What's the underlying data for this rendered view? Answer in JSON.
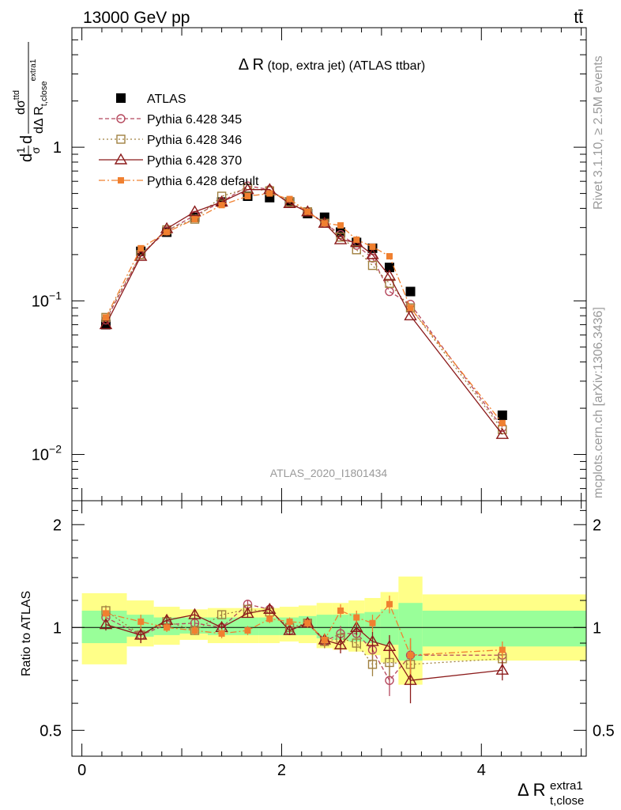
{
  "header": {
    "energy_label": "13000 GeV pp",
    "process_label": "tt̄",
    "side_label_top": "Rivet 3.1.10, ≥ 2.5M events",
    "side_label_bottom": "mcplots.cern.ch [arXiv:1306.3436]",
    "analysis_id": "ATLAS_2020_I1801434"
  },
  "chart_data": [
    {
      "type": "line",
      "panel": "main",
      "title": "Δ R (top, extra jet) (ATLAS ttbar)",
      "title_main": "Δ R",
      "title_rest": " (top, extra jet) (ATLAS ttbar)",
      "ylabel": "dσ^ttd / σ d dΔ R_t,close^extra1",
      "ylabel_parts": {
        "prefix": "d",
        "frac_num": "1",
        "frac_den": "σ",
        "d": "d",
        "num": "dσ",
        "num_sup": "ttd",
        "den": "dΔ R",
        "den_sub": "t,close",
        "den_sup": "extra1"
      },
      "xlabel": "Δ R_t,close^extra1",
      "xlabel_parts": {
        "main": "Δ R",
        "sup": "extra1",
        "sub": "t,close"
      },
      "yscale": "log",
      "ylim": [
        0.005,
        6
      ],
      "xlim": [
        -0.1,
        5.05
      ],
      "yticks": [
        {
          "v": 0.01,
          "base": "10",
          "exp": "−2"
        },
        {
          "v": 0.1,
          "base": "10",
          "exp": "−1"
        },
        {
          "v": 1,
          "base": "1",
          "exp": ""
        }
      ],
      "legend_position": "top-left",
      "series": [
        {
          "name": "ATLAS",
          "role": "data",
          "marker": "square-filled",
          "color": "#000000",
          "x": [
            0.24,
            0.59,
            0.85,
            1.13,
            1.4,
            1.66,
            1.88,
            2.08,
            2.26,
            2.43,
            2.59,
            2.75,
            2.91,
            3.08,
            3.29,
            4.21
          ],
          "y": [
            0.07,
            0.21,
            0.28,
            0.35,
            0.44,
            0.48,
            0.47,
            0.44,
            0.37,
            0.35,
            0.28,
            0.24,
            0.22,
            0.165,
            0.115,
            0.018
          ]
        },
        {
          "name": "Pythia 6.428 345",
          "marker": "circle-open",
          "color": "#b5485d",
          "dash": "5,3",
          "x": [
            0.24,
            0.59,
            0.85,
            1.13,
            1.4,
            1.66,
            1.88,
            2.08,
            2.26,
            2.43,
            2.59,
            2.75,
            2.91,
            3.08,
            3.29,
            4.21
          ],
          "y": [
            0.075,
            0.2,
            0.285,
            0.36,
            0.44,
            0.56,
            0.53,
            0.43,
            0.38,
            0.32,
            0.27,
            0.23,
            0.19,
            0.115,
            0.095,
            0.015
          ]
        },
        {
          "name": "Pythia 6.428 346",
          "marker": "square-open",
          "color": "#a08040",
          "dash": "2,3",
          "x": [
            0.24,
            0.59,
            0.85,
            1.13,
            1.4,
            1.66,
            1.88,
            2.08,
            2.26,
            2.43,
            2.59,
            2.75,
            2.91,
            3.08,
            3.29,
            4.21
          ],
          "y": [
            0.078,
            0.2,
            0.29,
            0.34,
            0.48,
            0.54,
            0.52,
            0.44,
            0.38,
            0.32,
            0.26,
            0.215,
            0.17,
            0.13,
            0.09,
            0.0145
          ]
        },
        {
          "name": "Pythia 6.428 370",
          "marker": "triangle-open",
          "color": "#8b1a1a",
          "dash": "",
          "x": [
            0.24,
            0.59,
            0.85,
            1.13,
            1.4,
            1.66,
            1.88,
            2.08,
            2.26,
            2.43,
            2.59,
            2.75,
            2.91,
            3.08,
            3.29,
            4.21
          ],
          "y": [
            0.07,
            0.195,
            0.295,
            0.38,
            0.44,
            0.53,
            0.53,
            0.43,
            0.38,
            0.32,
            0.25,
            0.24,
            0.2,
            0.145,
            0.08,
            0.0135
          ]
        },
        {
          "name": "Pythia 6.428 default",
          "marker": "square-filled-small",
          "color": "#f08030",
          "dash": "8,3,2,3",
          "x": [
            0.24,
            0.59,
            0.85,
            1.13,
            1.4,
            1.66,
            1.88,
            2.08,
            2.26,
            2.43,
            2.59,
            2.75,
            2.91,
            3.08,
            3.29,
            4.21
          ],
          "y": [
            0.078,
            0.22,
            0.28,
            0.34,
            0.42,
            0.48,
            0.5,
            0.46,
            0.38,
            0.32,
            0.31,
            0.25,
            0.225,
            0.195,
            0.09,
            0.016
          ]
        }
      ]
    },
    {
      "type": "line",
      "panel": "ratio",
      "ylabel": "Ratio to ATLAS",
      "ylim": [
        0.42,
        2.35
      ],
      "yscale": "log",
      "yticks": [
        0.5,
        1,
        2
      ],
      "yticklabels": [
        "0.5",
        "1",
        "2"
      ],
      "xticks": [
        0,
        2,
        4
      ],
      "xticklabels": [
        "0",
        "2",
        "4"
      ],
      "reference_line": 1.0,
      "uncertainty_bands": {
        "bins": [
          0.0,
          0.45,
          0.72,
          0.98,
          1.26,
          1.53,
          1.77,
          1.98,
          2.17,
          2.35,
          2.51,
          2.67,
          2.83,
          2.99,
          3.17,
          3.41,
          5.05
        ],
        "inner_band": {
          "color": "#99ff99",
          "lo": [
            0.9,
            0.94,
            0.95,
            0.96,
            0.95,
            0.95,
            0.95,
            0.95,
            0.95,
            0.93,
            0.92,
            0.91,
            0.9,
            0.89,
            0.8,
            0.88
          ],
          "hi": [
            1.12,
            1.09,
            1.07,
            1.07,
            1.07,
            1.07,
            1.07,
            1.07,
            1.08,
            1.09,
            1.09,
            1.1,
            1.11,
            1.13,
            1.18,
            1.12
          ]
        },
        "outer_band": {
          "color": "#ffff88",
          "lo": [
            0.78,
            0.88,
            0.89,
            0.92,
            0.9,
            0.9,
            0.9,
            0.91,
            0.9,
            0.87,
            0.86,
            0.85,
            0.83,
            0.79,
            0.68,
            0.8
          ],
          "hi": [
            1.26,
            1.2,
            1.15,
            1.13,
            1.14,
            1.14,
            1.14,
            1.15,
            1.16,
            1.18,
            1.18,
            1.2,
            1.22,
            1.27,
            1.41,
            1.25
          ]
        }
      },
      "series": [
        {
          "name": "Pythia 6.428 345",
          "color": "#b5485d",
          "dash": "5,3",
          "marker": "circle-open",
          "x": [
            0.24,
            0.59,
            0.85,
            1.13,
            1.4,
            1.66,
            1.88,
            2.08,
            2.26,
            2.43,
            2.59,
            2.75,
            2.91,
            3.08,
            3.29,
            4.21
          ],
          "y": [
            1.07,
            0.95,
            1.02,
            1.03,
            1.0,
            1.17,
            1.13,
            0.98,
            1.03,
            0.91,
            0.96,
            0.96,
            0.86,
            0.7,
            0.83,
            0.83
          ],
          "err": [
            0.04,
            0.05,
            0.03,
            0.03,
            0.03,
            0.03,
            0.03,
            0.03,
            0.03,
            0.04,
            0.05,
            0.05,
            0.06,
            0.07,
            0.1,
            0.05
          ]
        },
        {
          "name": "Pythia 6.428 346",
          "color": "#a08040",
          "dash": "2,3",
          "marker": "square-open",
          "x": [
            0.24,
            0.59,
            0.85,
            1.13,
            1.4,
            1.66,
            1.88,
            2.08,
            2.26,
            2.43,
            2.59,
            2.75,
            2.91,
            3.08,
            3.29,
            4.21
          ],
          "y": [
            1.12,
            0.95,
            1.04,
            0.98,
            1.09,
            1.13,
            1.11,
            1.0,
            1.03,
            0.91,
            0.93,
            0.9,
            0.78,
            0.79,
            0.78,
            0.81
          ],
          "err": [
            0.04,
            0.05,
            0.03,
            0.03,
            0.03,
            0.03,
            0.03,
            0.03,
            0.03,
            0.04,
            0.05,
            0.05,
            0.06,
            0.07,
            0.1,
            0.05
          ]
        },
        {
          "name": "Pythia 6.428 370",
          "color": "#8b1a1a",
          "dash": "",
          "marker": "triangle-open",
          "x": [
            0.24,
            0.59,
            0.85,
            1.13,
            1.4,
            1.66,
            1.88,
            2.08,
            2.26,
            2.43,
            2.59,
            2.75,
            2.91,
            3.08,
            3.29,
            4.21
          ],
          "y": [
            1.02,
            0.95,
            1.05,
            1.09,
            1.0,
            1.1,
            1.13,
            0.98,
            1.03,
            0.92,
            0.89,
            1.0,
            0.91,
            0.88,
            0.7,
            0.75
          ],
          "err": [
            0.04,
            0.05,
            0.03,
            0.03,
            0.03,
            0.03,
            0.03,
            0.03,
            0.03,
            0.04,
            0.05,
            0.05,
            0.06,
            0.07,
            0.1,
            0.05
          ]
        },
        {
          "name": "Pythia 6.428 default",
          "color": "#f08030",
          "dash": "8,3,2,3",
          "marker": "square-filled-small",
          "x": [
            0.24,
            0.59,
            0.85,
            1.13,
            1.4,
            1.66,
            1.88,
            2.08,
            2.26,
            2.43,
            2.59,
            2.75,
            2.91,
            3.08,
            3.29,
            4.21
          ],
          "y": [
            1.1,
            1.04,
            1.0,
            0.98,
            0.96,
            0.98,
            1.06,
            1.04,
            1.03,
            0.92,
            1.12,
            1.07,
            1.03,
            1.17,
            0.83,
            0.86
          ],
          "err": [
            0.04,
            0.05,
            0.03,
            0.03,
            0.03,
            0.03,
            0.03,
            0.03,
            0.03,
            0.04,
            0.05,
            0.05,
            0.06,
            0.07,
            0.1,
            0.05
          ]
        }
      ]
    }
  ]
}
